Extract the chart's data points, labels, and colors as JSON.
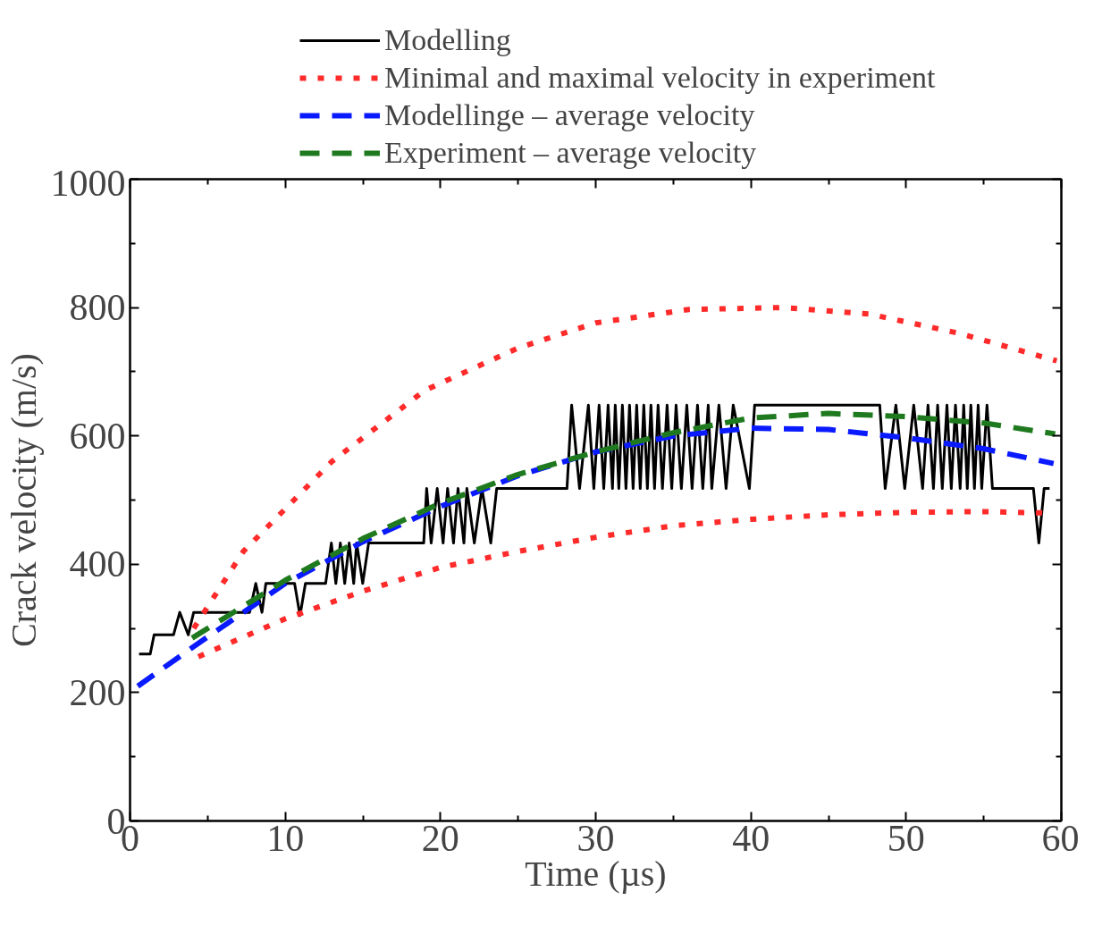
{
  "chart_data": {
    "type": "line",
    "xlabel": "Time (µs)",
    "ylabel": "Crack velocity (m/s)",
    "xlim": [
      0,
      60
    ],
    "ylim": [
      0,
      1000
    ],
    "xticks": [
      0,
      10,
      20,
      30,
      40,
      50,
      60
    ],
    "yticks": [
      0,
      200,
      400,
      600,
      800,
      1000
    ],
    "grid": false,
    "legend": "top",
    "marker": "none",
    "series": [
      {
        "name": "Modelling",
        "color": "#000000",
        "line_style": "solid",
        "x": [
          0.58,
          1.3,
          1.55,
          2.8,
          3.2,
          3.75,
          4.1,
          7.7,
          8.1,
          8.5,
          8.75,
          10.6,
          10.95,
          11.3,
          12.6,
          12.97,
          13.26,
          13.55,
          13.83,
          14.12,
          14.41,
          14.6,
          14.99,
          15.37,
          18.92,
          19.11,
          19.4,
          19.79,
          20.17,
          20.46,
          20.84,
          21.13,
          21.51,
          21.7,
          22.18,
          22.67,
          23.24,
          23.62,
          28.15,
          28.45,
          28.96,
          29.53,
          29.88,
          30.22,
          30.52,
          30.8,
          31.08,
          31.26,
          31.49,
          31.72,
          31.95,
          32.18,
          32.41,
          32.64,
          32.87,
          33.1,
          33.33,
          33.56,
          33.79,
          34.02,
          34.3,
          34.6,
          34.9,
          35.18,
          35.52,
          35.87,
          36.21,
          36.56,
          36.9,
          37.25,
          37.48,
          37.94,
          38.4,
          38.86,
          39.9,
          40.24,
          48.3,
          48.65,
          49.34,
          49.91,
          50.49,
          51.06,
          51.41,
          51.76,
          52.03,
          52.33,
          52.63,
          52.91,
          53.18,
          53.48,
          53.71,
          53.94,
          54.17,
          54.4,
          54.64,
          54.87,
          55.21,
          55.56,
          58.2,
          58.55,
          58.89,
          59.24
        ],
        "values": [
          260,
          260,
          290,
          290,
          325,
          290,
          325,
          325,
          370,
          325,
          370,
          370,
          320,
          370,
          370,
          433,
          370,
          433,
          370,
          433,
          370,
          433,
          370,
          433,
          433,
          518,
          433,
          518,
          433,
          518,
          433,
          518,
          433,
          518,
          433,
          518,
          433,
          518,
          518,
          648,
          518,
          648,
          518,
          648,
          518,
          648,
          518,
          648,
          518,
          648,
          518,
          648,
          518,
          648,
          518,
          648,
          518,
          648,
          518,
          648,
          518,
          648,
          518,
          648,
          518,
          648,
          518,
          648,
          518,
          648,
          518,
          648,
          518,
          648,
          518,
          648,
          648,
          518,
          648,
          518,
          648,
          518,
          648,
          518,
          648,
          518,
          648,
          518,
          648,
          518,
          648,
          518,
          648,
          518,
          648,
          518,
          648,
          518,
          518,
          433,
          518,
          518
        ]
      },
      {
        "name": "Minimal and maximal velocity in experiment",
        "color": "#ff2a2a",
        "line_style": "dotted",
        "x": [
          4.1,
          7.3,
          13,
          19,
          25,
          30,
          36,
          42,
          47.6,
          53.4,
          59.7,
          null,
          4.4,
          10,
          15,
          20,
          25,
          30,
          35,
          40,
          45,
          50,
          55,
          58.8
        ],
        "values": [
          300,
          420,
          560,
          671,
          737,
          776,
          797,
          800,
          790,
          760,
          717,
          null,
          256,
          315,
          358,
          395,
          420,
          442,
          460,
          470,
          477,
          481,
          482,
          480
        ]
      },
      {
        "name": "Modellinge – average velocity",
        "color": "#0a1aff",
        "line_style": "dashed",
        "x": [
          0.5,
          4,
          10,
          15,
          20,
          25,
          30,
          35,
          40,
          45,
          50,
          55,
          59.5
        ],
        "values": [
          210,
          270,
          370,
          435,
          490,
          538,
          575,
          600,
          612,
          610,
          597,
          580,
          557
        ]
      },
      {
        "name": "Experiment – average velocity",
        "color": "#1f7a1f",
        "line_style": "dashed",
        "x": [
          4,
          10,
          15,
          20,
          25,
          30,
          35,
          40,
          45,
          50,
          55,
          59.6
        ],
        "values": [
          285,
          375,
          440,
          495,
          540,
          575,
          605,
          628,
          635,
          630,
          620,
          603
        ]
      }
    ]
  }
}
